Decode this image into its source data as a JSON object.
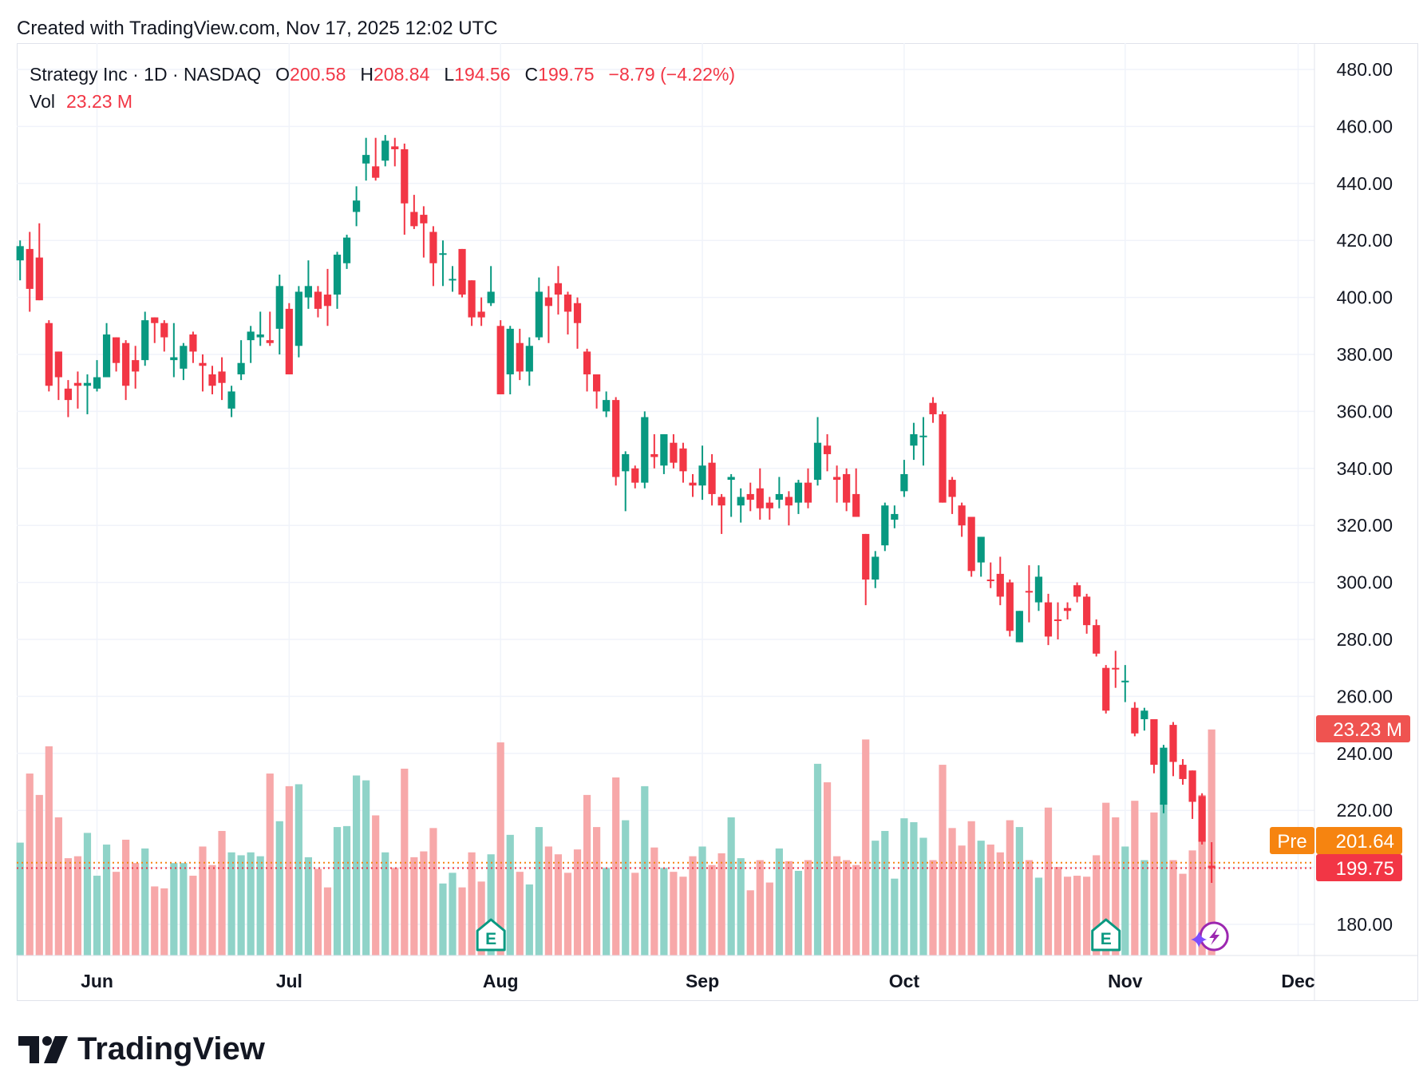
{
  "created": "Created with TradingView.com, Nov 17, 2025 12:02 UTC",
  "legend": {
    "symbol": "Strategy Inc · 1D · NASDAQ",
    "o_label": "O",
    "o": "200.58",
    "h_label": "H",
    "h": "208.84",
    "l_label": "L",
    "l": "194.56",
    "c_label": "C",
    "c": "199.75",
    "change": "−8.79 (−4.22%)",
    "vol_label": "Vol",
    "vol": "23.23 M"
  },
  "badges": {
    "volume": "23.23 M",
    "pre_label": "Pre",
    "pre_price": "201.64",
    "last_price": "199.75"
  },
  "colors": {
    "up": "#089981",
    "down": "#f23645",
    "pre": "#f68410",
    "volume_badge": "#ef5350"
  },
  "logo_text": "TradingView",
  "earnings_marker": "E",
  "chart_data": {
    "type": "candlestick",
    "title": "Strategy Inc · 1D · NASDAQ",
    "yaxis_ticks": [
      "480.00",
      "460.00",
      "440.00",
      "420.00",
      "400.00",
      "380.00",
      "360.00",
      "340.00",
      "320.00",
      "300.00",
      "280.00",
      "260.00",
      "240.00",
      "220.00",
      "180.00"
    ],
    "ylim": [
      170,
      485
    ],
    "xaxis_ticks": [
      {
        "label": "Jun",
        "date": "2025-06-02"
      },
      {
        "label": "Jul",
        "date": "2025-07-01"
      },
      {
        "label": "Aug",
        "date": "2025-08-01"
      },
      {
        "label": "Sep",
        "date": "2025-09-02"
      },
      {
        "label": "Oct",
        "date": "2025-10-01"
      },
      {
        "label": "Nov",
        "date": "2025-11-03"
      },
      {
        "label": "Dec",
        "date": "2025-12-01"
      }
    ],
    "grid": true,
    "earnings_dates": [
      "2025-07-31",
      "2025-10-30"
    ],
    "pre_market_price": 201.64,
    "last_price": 199.75,
    "columns": [
      "date",
      "open",
      "high",
      "low",
      "close",
      "volume_millions"
    ],
    "candles": [
      [
        "2025-05-20",
        413,
        420,
        406,
        418,
        11.6
      ],
      [
        "2025-05-21",
        417,
        423,
        395,
        403,
        18.7
      ],
      [
        "2025-05-22",
        414,
        426,
        399,
        399,
        16.5
      ],
      [
        "2025-05-23",
        391,
        392,
        367,
        369,
        21.5
      ],
      [
        "2025-05-27",
        381,
        381,
        364,
        372,
        14.2
      ],
      [
        "2025-05-28",
        368,
        371,
        358,
        364,
        10.0
      ],
      [
        "2025-05-29",
        370,
        374,
        361,
        369,
        10.2
      ],
      [
        "2025-05-30",
        369,
        373,
        359,
        370,
        12.6
      ],
      [
        "2025-06-02",
        368,
        378,
        367,
        372,
        8.2
      ],
      [
        "2025-06-03",
        372,
        391,
        373,
        387,
        11.4
      ],
      [
        "2025-06-04",
        386,
        386,
        374,
        377,
        8.6
      ],
      [
        "2025-06-05",
        384,
        385,
        364,
        369,
        11.9
      ],
      [
        "2025-06-06",
        378,
        383,
        368,
        374,
        9.5
      ],
      [
        "2025-06-09",
        378,
        395,
        376,
        392,
        11.0
      ],
      [
        "2025-06-10",
        393,
        393,
        384,
        391,
        7.1
      ],
      [
        "2025-06-11",
        391,
        392,
        381,
        386,
        6.9
      ],
      [
        "2025-06-12",
        378,
        391,
        372,
        379,
        9.5
      ],
      [
        "2025-06-13",
        375,
        384,
        371,
        383,
        9.5
      ],
      [
        "2025-06-16",
        387,
        388,
        377,
        381,
        8.2
      ],
      [
        "2025-06-17",
        377,
        380,
        367,
        376,
        11.2
      ],
      [
        "2025-06-18",
        373,
        376,
        366,
        369,
        9.3
      ],
      [
        "2025-06-20",
        374,
        379,
        364,
        370,
        12.8
      ],
      [
        "2025-06-23",
        361,
        369,
        358,
        367,
        10.6
      ],
      [
        "2025-06-24",
        373,
        385,
        371,
        377,
        10.3
      ],
      [
        "2025-06-25",
        385,
        390,
        377,
        388,
        10.6
      ],
      [
        "2025-06-26",
        386,
        395,
        383,
        387,
        10.2
      ],
      [
        "2025-06-27",
        385,
        395,
        383,
        384,
        18.7
      ],
      [
        "2025-06-30",
        389,
        408,
        380,
        404,
        13.8
      ],
      [
        "2025-07-01",
        396,
        398,
        373,
        373,
        17.4
      ],
      [
        "2025-07-02",
        383,
        404,
        379,
        402,
        17.6
      ],
      [
        "2025-07-03",
        400,
        413,
        396,
        404,
        10.1
      ],
      [
        "2025-07-07",
        402,
        404,
        393,
        396,
        8.9
      ],
      [
        "2025-07-08",
        401,
        410,
        390,
        397,
        7.0
      ],
      [
        "2025-07-09",
        401,
        416,
        396,
        415,
        13.2
      ],
      [
        "2025-07-10",
        412,
        422,
        410,
        421,
        13.3
      ],
      [
        "2025-07-11",
        430,
        439,
        425,
        434,
        18.5
      ],
      [
        "2025-07-14",
        447,
        456,
        441,
        450,
        18.0
      ],
      [
        "2025-07-15",
        446,
        456,
        441,
        442,
        14.4
      ],
      [
        "2025-07-16",
        448,
        457,
        446,
        455,
        10.6
      ],
      [
        "2025-07-17",
        453,
        456,
        446,
        452,
        9.0
      ],
      [
        "2025-07-18",
        452,
        454,
        422,
        433,
        19.2
      ],
      [
        "2025-07-21",
        430,
        436,
        424,
        425,
        10.1
      ],
      [
        "2025-07-22",
        429,
        432,
        414,
        426,
        10.7
      ],
      [
        "2025-07-23",
        423,
        425,
        404,
        412,
        13.1
      ],
      [
        "2025-07-24",
        415,
        420,
        404,
        415.5,
        7.4
      ],
      [
        "2025-07-25",
        406,
        411,
        402,
        406.5,
        8.5
      ],
      [
        "2025-07-28",
        417,
        417,
        400,
        401,
        7.0
      ],
      [
        "2025-07-29",
        406,
        406,
        390,
        393,
        10.6
      ],
      [
        "2025-07-30",
        395,
        400,
        390,
        393,
        7.6
      ],
      [
        "2025-07-31",
        398,
        411,
        397,
        402,
        10.4
      ],
      [
        "2025-08-01",
        390,
        392,
        366,
        366,
        21.9
      ],
      [
        "2025-08-04",
        373,
        390,
        366,
        389,
        12.4
      ],
      [
        "2025-08-05",
        384,
        389,
        371,
        374,
        8.6
      ],
      [
        "2025-08-06",
        374,
        386,
        369,
        383,
        7.3
      ],
      [
        "2025-08-07",
        386,
        407,
        385,
        402,
        13.2
      ],
      [
        "2025-08-08",
        400,
        404,
        384,
        397,
        11.2
      ],
      [
        "2025-08-11",
        405,
        411,
        394,
        401,
        10.4
      ],
      [
        "2025-08-12",
        401,
        402,
        387,
        395,
        8.5
      ],
      [
        "2025-08-13",
        398,
        400,
        382,
        391,
        10.9
      ],
      [
        "2025-08-14",
        381,
        382,
        367,
        373,
        16.5
      ],
      [
        "2025-08-15",
        373,
        373,
        361,
        367,
        13.2
      ],
      [
        "2025-08-18",
        360,
        367,
        358,
        364,
        9.0
      ],
      [
        "2025-08-19",
        364,
        365,
        334,
        337,
        18.3
      ],
      [
        "2025-08-20",
        339,
        346,
        325,
        345,
        13.9
      ],
      [
        "2025-08-21",
        340,
        341,
        333,
        335,
        8.5
      ],
      [
        "2025-08-22",
        335,
        360,
        333,
        358,
        17.4
      ],
      [
        "2025-08-25",
        345,
        352,
        340,
        344,
        11.1
      ],
      [
        "2025-08-26",
        341,
        352,
        338,
        352,
        9.0
      ],
      [
        "2025-08-27",
        349,
        352,
        340,
        342,
        8.6
      ],
      [
        "2025-08-28",
        347,
        349,
        335,
        339,
        8.1
      ],
      [
        "2025-08-29",
        335,
        338,
        330,
        334,
        10.2
      ],
      [
        "2025-09-02",
        334,
        348,
        329,
        341,
        11.2
      ],
      [
        "2025-09-03",
        342,
        345,
        327,
        331,
        9.3
      ],
      [
        "2025-09-04",
        330,
        331,
        317,
        327,
        10.5
      ],
      [
        "2025-09-05",
        336,
        338,
        323,
        337,
        14.2
      ],
      [
        "2025-09-08",
        327,
        333,
        321,
        330,
        10.0
      ],
      [
        "2025-09-09",
        331,
        335,
        325,
        329,
        6.7
      ],
      [
        "2025-09-10",
        333,
        340,
        322,
        326,
        9.8
      ],
      [
        "2025-09-11",
        328,
        330,
        322,
        326,
        7.5
      ],
      [
        "2025-09-12",
        329,
        337,
        326,
        331,
        11.0
      ],
      [
        "2025-09-15",
        330,
        332,
        320,
        327,
        9.7
      ],
      [
        "2025-09-16",
        328,
        336,
        324,
        335,
        8.7
      ],
      [
        "2025-09-17",
        335,
        340,
        326,
        328,
        9.8
      ],
      [
        "2025-09-18",
        336,
        358,
        334,
        349,
        19.7
      ],
      [
        "2025-09-19",
        348,
        352,
        339,
        345,
        17.8
      ],
      [
        "2025-09-22",
        337,
        341,
        328,
        336,
        10.2
      ],
      [
        "2025-09-23",
        338,
        340,
        325,
        328,
        9.8
      ],
      [
        "2025-09-24",
        331,
        340,
        323,
        323,
        9.3
      ],
      [
        "2025-09-25",
        317,
        317,
        292,
        301,
        22.2
      ],
      [
        "2025-09-26",
        301,
        311,
        298,
        309,
        11.8
      ],
      [
        "2025-09-29",
        313,
        328,
        311,
        327,
        12.8
      ],
      [
        "2025-09-30",
        322,
        327,
        319,
        324,
        7.9
      ],
      [
        "2025-10-01",
        332,
        343,
        330,
        338,
        14.1
      ],
      [
        "2025-10-02",
        348,
        356,
        343,
        352,
        13.7
      ],
      [
        "2025-10-03",
        351,
        358,
        341,
        351.5,
        12.1
      ],
      [
        "2025-10-06",
        363,
        365,
        356,
        359,
        9.8
      ],
      [
        "2025-10-07",
        359,
        360,
        328,
        328,
        19.6
      ],
      [
        "2025-10-08",
        336,
        337,
        324,
        330,
        13.1
      ],
      [
        "2025-10-09",
        327,
        328,
        316,
        320,
        11.3
      ],
      [
        "2025-10-10",
        323,
        323,
        302,
        304,
        13.8
      ],
      [
        "2025-10-13",
        307,
        316,
        302,
        316,
        11.8
      ],
      [
        "2025-10-14",
        301,
        307,
        298,
        300.5,
        11.4
      ],
      [
        "2025-10-15",
        303,
        309,
        292,
        295,
        10.6
      ],
      [
        "2025-10-16",
        300,
        301,
        281,
        283,
        13.9
      ],
      [
        "2025-10-17",
        279,
        290,
        279,
        290,
        13.2
      ],
      [
        "2025-10-20",
        297,
        306,
        286,
        296.5,
        9.8
      ],
      [
        "2025-10-21",
        293,
        306,
        290,
        302,
        8.0
      ],
      [
        "2025-10-22",
        293,
        296,
        278,
        281,
        15.2
      ],
      [
        "2025-10-23",
        287,
        293,
        280,
        286.5,
        9.1
      ],
      [
        "2025-10-24",
        291,
        293,
        287,
        290,
        8.1
      ],
      [
        "2025-10-27",
        299,
        300,
        293,
        295,
        8.2
      ],
      [
        "2025-10-28",
        295,
        296,
        282,
        285,
        8.1
      ],
      [
        "2025-10-29",
        285,
        287,
        274,
        275,
        10.3
      ],
      [
        "2025-10-30",
        270,
        271,
        254,
        255,
        15.7
      ],
      [
        "2025-10-31",
        270,
        276,
        263,
        269.5,
        14.2
      ],
      [
        "2025-11-03",
        265,
        271,
        258,
        265.5,
        11.2
      ],
      [
        "2025-11-04",
        256,
        258,
        246,
        247,
        15.9
      ],
      [
        "2025-11-05",
        252,
        256,
        248,
        255,
        9.8
      ],
      [
        "2025-11-06",
        252,
        252,
        233,
        236,
        14.7
      ],
      [
        "2025-11-07",
        222,
        243,
        219,
        242,
        15.7
      ],
      [
        "2025-11-10",
        250,
        251,
        232,
        237,
        9.8
      ],
      [
        "2025-11-11",
        236,
        238,
        229,
        231,
        8.4
      ],
      [
        "2025-11-12",
        234,
        234,
        217,
        223,
        10.8
      ],
      [
        "2025-11-13",
        225,
        226,
        208,
        209,
        16.5
      ],
      [
        "2025-11-14",
        200.58,
        208.84,
        194.56,
        199.75,
        23.23
      ]
    ]
  }
}
